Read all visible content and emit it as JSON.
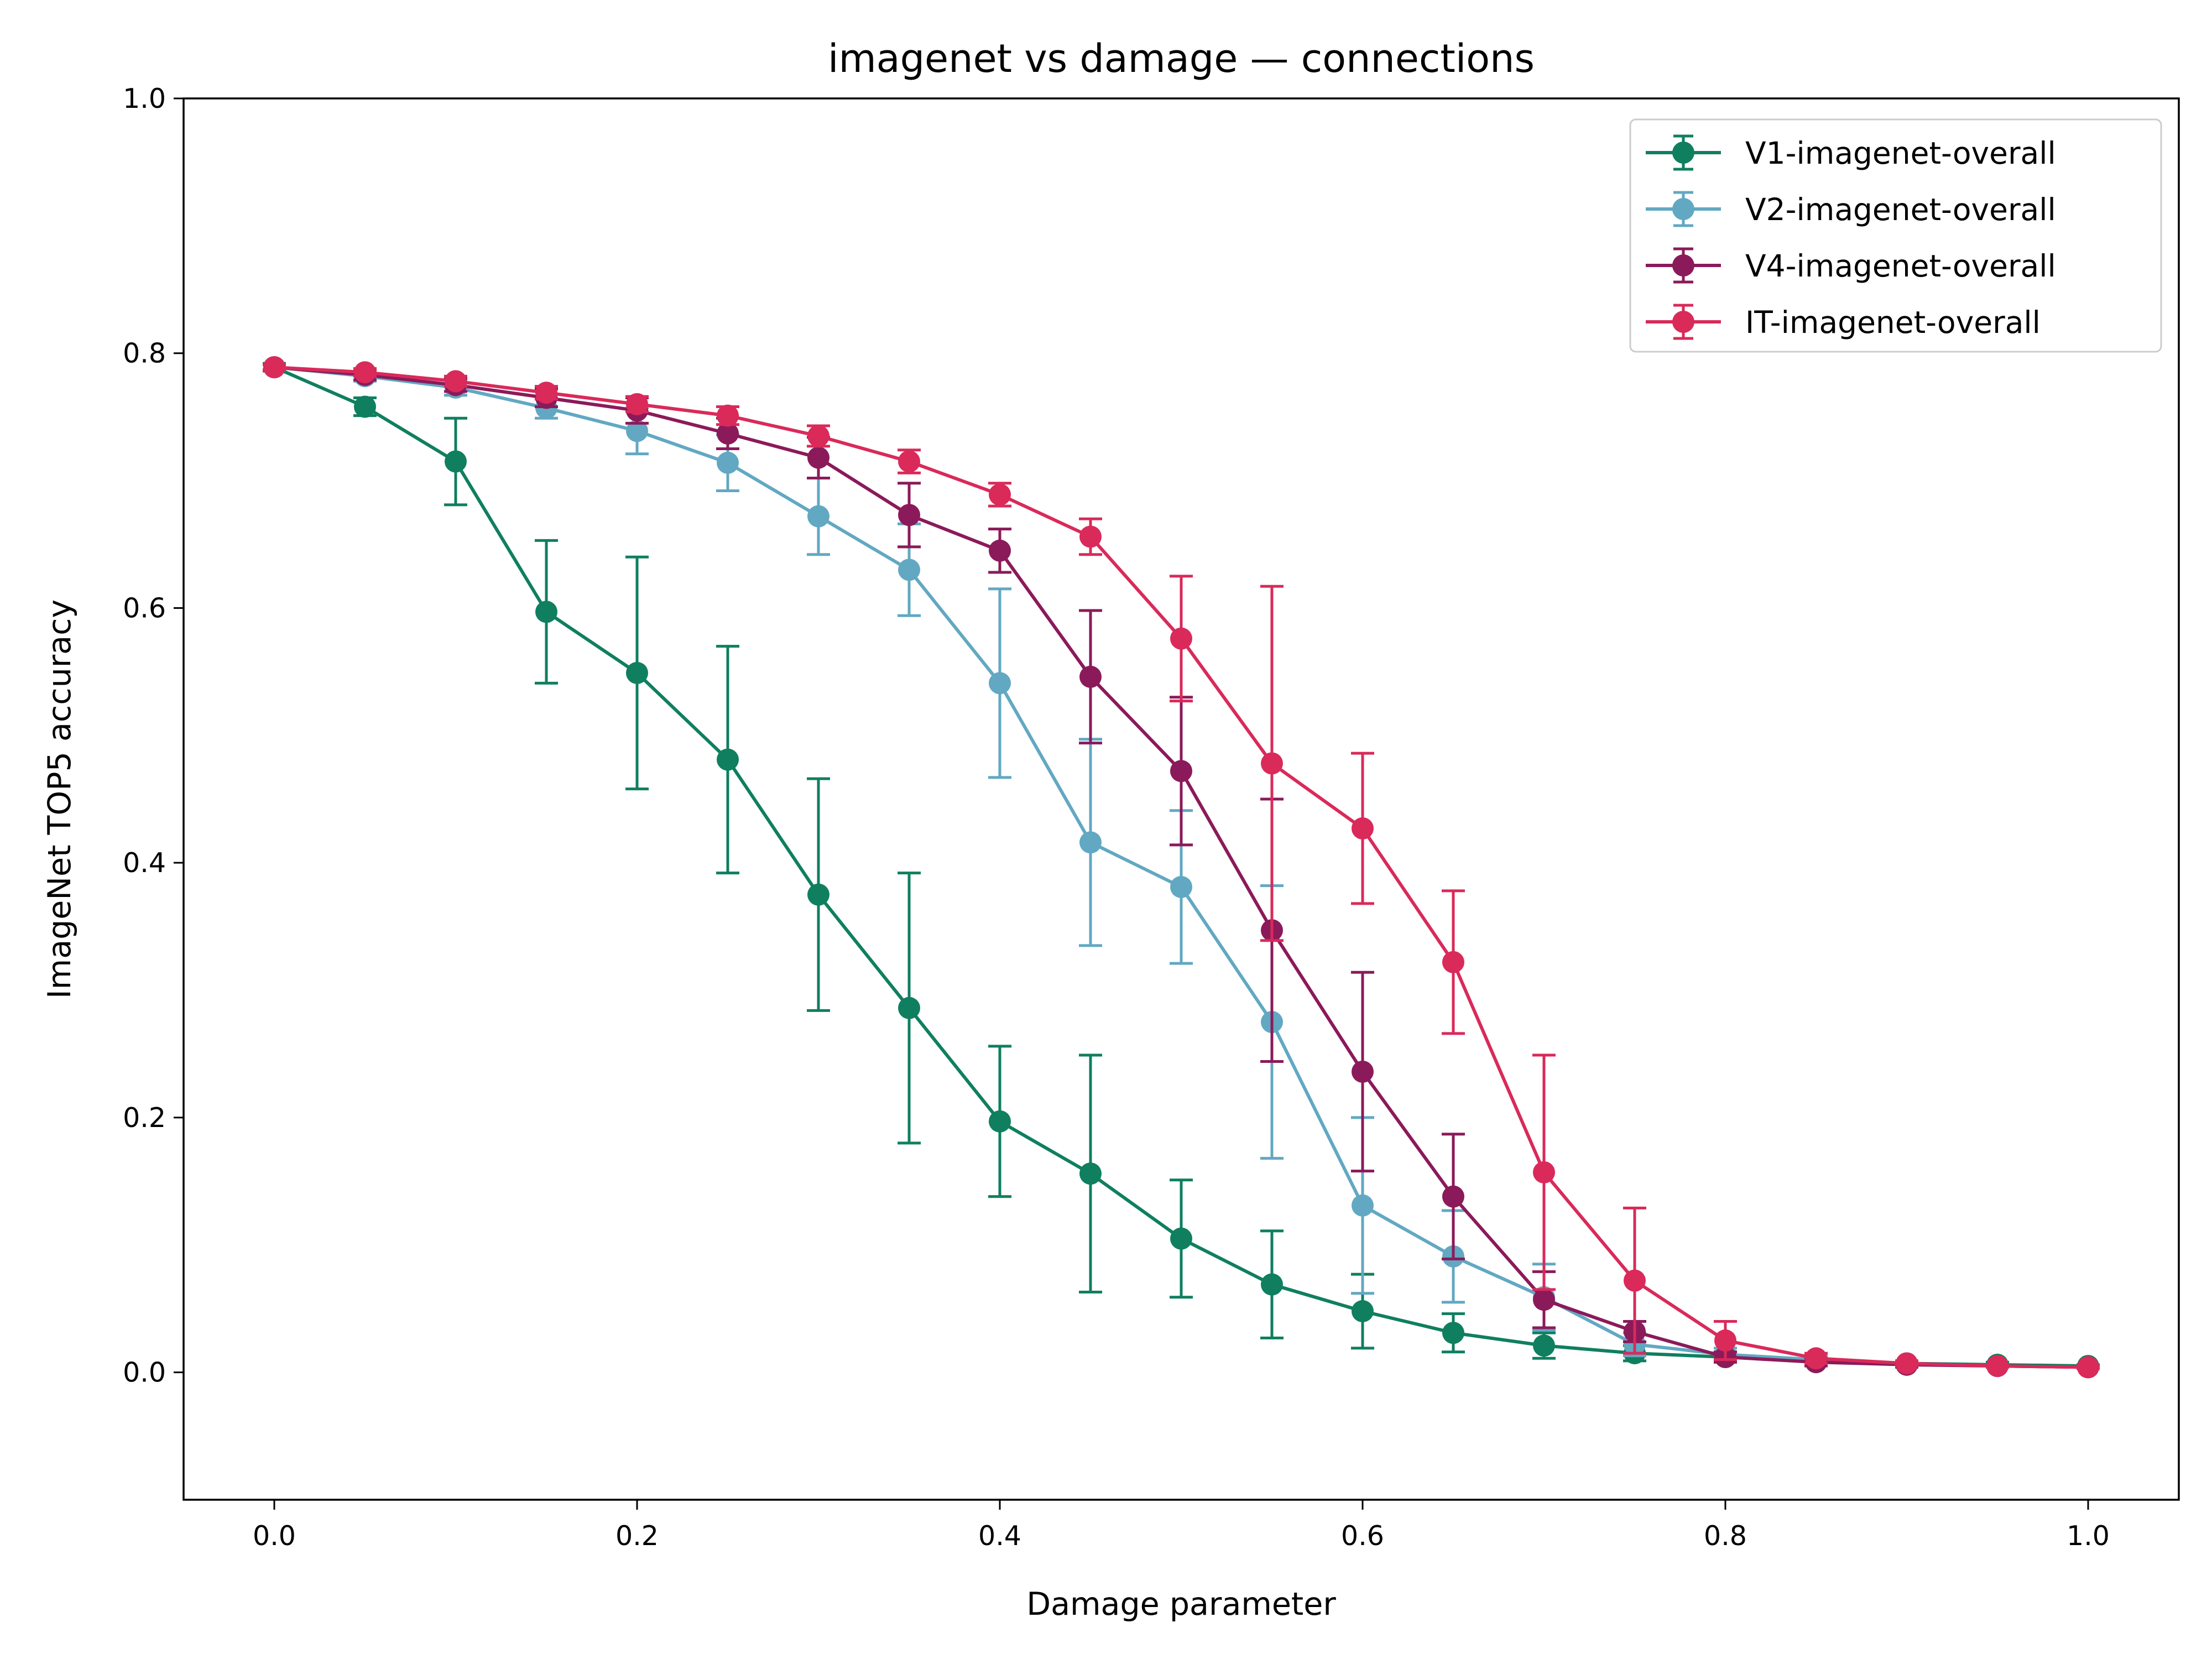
{
  "chart_data": {
    "type": "line",
    "title": "imagenet vs damage — connections",
    "xlabel": "Damage parameter",
    "ylabel": "ImageNet TOP5 accuracy",
    "xlim": [
      -0.05,
      1.05
    ],
    "ylim": [
      -0.1,
      1.0
    ],
    "xticks": [
      0.0,
      0.2,
      0.4,
      0.6,
      0.8,
      1.0
    ],
    "yticks": [
      0.0,
      0.2,
      0.4,
      0.6,
      0.8,
      1.0
    ],
    "xtick_labels": [
      "0.0",
      "0.2",
      "0.4",
      "0.6",
      "0.8",
      "1.0"
    ],
    "ytick_labels": [
      "0.0",
      "0.2",
      "0.4",
      "0.6",
      "0.8",
      "1.0"
    ],
    "grid": false,
    "legend_position": "top-right",
    "x": [
      0.0,
      0.05,
      0.1,
      0.15,
      0.2,
      0.25,
      0.3,
      0.35,
      0.4,
      0.45,
      0.5,
      0.55,
      0.6,
      0.65,
      0.7,
      0.75,
      0.8,
      0.85,
      0.9,
      0.95,
      1.0
    ],
    "series": [
      {
        "name": "V1-imagenet-overall",
        "color": "#0f7f5f",
        "values": [
          0.789,
          0.758,
          0.715,
          0.597,
          0.549,
          0.481,
          0.375,
          0.286,
          0.197,
          0.156,
          0.105,
          0.069,
          0.048,
          0.031,
          0.021,
          0.015,
          0.012,
          0.009,
          0.007,
          0.006,
          0.005
        ],
        "errors": [
          0.003,
          0.007,
          0.034,
          0.056,
          0.091,
          0.089,
          0.091,
          0.106,
          0.059,
          0.093,
          0.046,
          0.042,
          0.029,
          0.015,
          0.01,
          0.006,
          0.004,
          0.003,
          0.002,
          0.002,
          0.001
        ]
      },
      {
        "name": "V2-imagenet-overall",
        "color": "#62a8c2",
        "values": [
          0.789,
          0.782,
          0.773,
          0.757,
          0.739,
          0.714,
          0.672,
          0.63,
          0.541,
          0.416,
          0.381,
          0.275,
          0.131,
          0.091,
          0.059,
          0.022,
          0.014,
          0.01,
          0.007,
          0.005,
          0.004
        ],
        "errors": [
          0.002,
          0.004,
          0.006,
          0.008,
          0.018,
          0.022,
          0.03,
          0.036,
          0.074,
          0.081,
          0.06,
          0.107,
          0.069,
          0.036,
          0.026,
          0.009,
          0.005,
          0.003,
          0.002,
          0.001,
          0.001
        ]
      },
      {
        "name": "V4-imagenet-overall",
        "color": "#8b1a5a",
        "values": [
          0.789,
          0.783,
          0.775,
          0.765,
          0.755,
          0.737,
          0.718,
          0.673,
          0.645,
          0.546,
          0.472,
          0.347,
          0.236,
          0.138,
          0.057,
          0.032,
          0.012,
          0.008,
          0.006,
          0.005,
          0.004
        ],
        "errors": [
          0.002,
          0.004,
          0.005,
          0.007,
          0.01,
          0.012,
          0.016,
          0.025,
          0.017,
          0.052,
          0.058,
          0.103,
          0.078,
          0.049,
          0.022,
          0.008,
          0.004,
          0.003,
          0.002,
          0.001,
          0.001
        ]
      },
      {
        "name": "IT-imagenet-overall",
        "color": "#d92a5a",
        "values": [
          0.789,
          0.785,
          0.778,
          0.769,
          0.76,
          0.751,
          0.735,
          0.715,
          0.689,
          0.656,
          0.576,
          0.478,
          0.427,
          0.322,
          0.157,
          0.072,
          0.025,
          0.011,
          0.007,
          0.005,
          0.004
        ],
        "errors": [
          0.002,
          0.003,
          0.004,
          0.005,
          0.006,
          0.007,
          0.008,
          0.009,
          0.009,
          0.014,
          0.049,
          0.139,
          0.059,
          0.056,
          0.092,
          0.057,
          0.015,
          0.004,
          0.002,
          0.001,
          0.001
        ]
      }
    ]
  }
}
